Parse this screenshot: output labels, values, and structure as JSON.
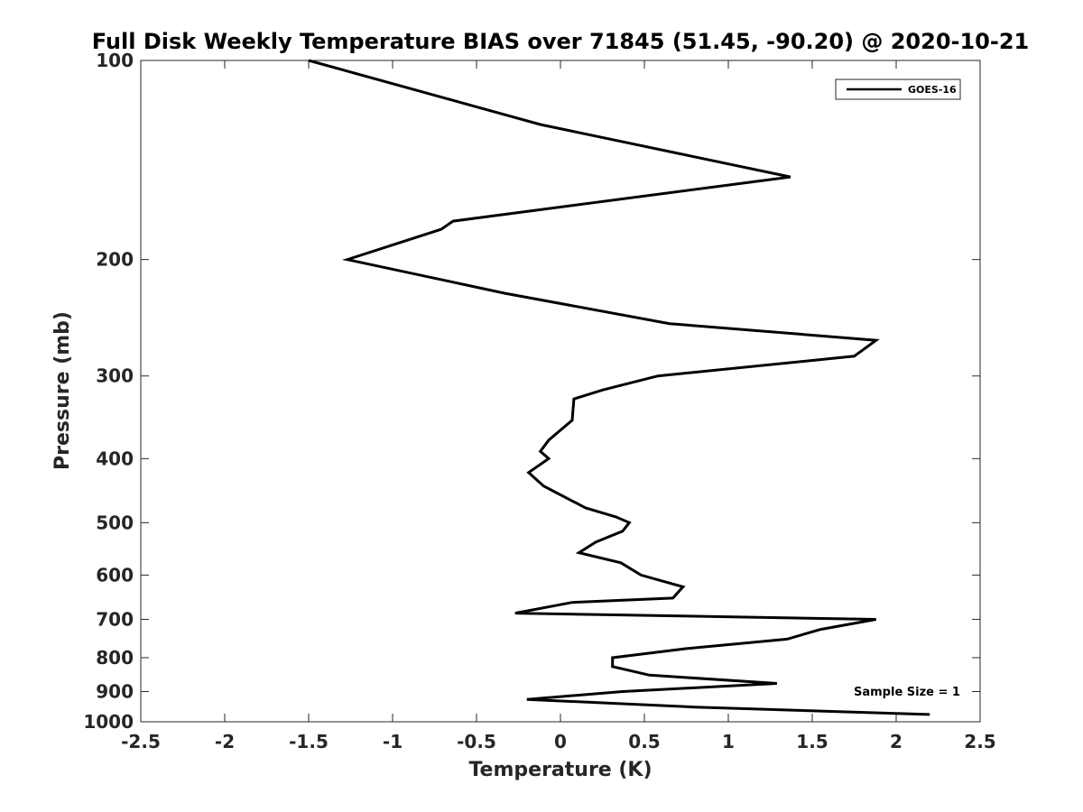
{
  "chart_data": {
    "type": "line",
    "title": "Full Disk Weekly Temperature BIAS over 71845 (51.45, -90.20) @ 2020-10-21",
    "xlabel": "Temperature (K)",
    "ylabel": "Pressure (mb)",
    "xlim": [
      -2.5,
      2.5
    ],
    "ylim": [
      100,
      1000
    ],
    "yscale": "log-reversed",
    "xticks": [
      -2.5,
      -2,
      -1.5,
      -1,
      -0.5,
      0,
      0.5,
      1,
      1.5,
      2,
      2.5
    ],
    "xtick_labels": [
      "-2.5",
      "-2",
      "-1.5",
      "-1",
      "-0.5",
      "0",
      "0.5",
      "1",
      "1.5",
      "2",
      "2.5"
    ],
    "yticks": [
      100,
      200,
      300,
      400,
      500,
      600,
      700,
      800,
      900,
      1000
    ],
    "ytick_labels": [
      "100",
      "200",
      "300",
      "400",
      "500",
      "600",
      "700",
      "800",
      "900",
      "1000"
    ],
    "legend": {
      "position": "top-right",
      "entries": [
        "GOES-16"
      ]
    },
    "annotation": "Sample Size = 1",
    "series": [
      {
        "name": "GOES-16",
        "color": "#000000",
        "points": [
          {
            "x": -1.5,
            "p": 100
          },
          {
            "x": -0.12,
            "p": 125
          },
          {
            "x": 1.37,
            "p": 150
          },
          {
            "x": -0.64,
            "p": 175
          },
          {
            "x": -0.71,
            "p": 180
          },
          {
            "x": -1.27,
            "p": 200
          },
          {
            "x": -0.33,
            "p": 225
          },
          {
            "x": 0.65,
            "p": 250
          },
          {
            "x": 1.88,
            "p": 265
          },
          {
            "x": 1.75,
            "p": 280
          },
          {
            "x": 0.58,
            "p": 300
          },
          {
            "x": 0.25,
            "p": 315
          },
          {
            "x": 0.08,
            "p": 325
          },
          {
            "x": 0.07,
            "p": 350
          },
          {
            "x": -0.07,
            "p": 375
          },
          {
            "x": -0.12,
            "p": 390
          },
          {
            "x": -0.07,
            "p": 400
          },
          {
            "x": -0.19,
            "p": 420
          },
          {
            "x": -0.1,
            "p": 440
          },
          {
            "x": 0.15,
            "p": 475
          },
          {
            "x": 0.33,
            "p": 490
          },
          {
            "x": 0.41,
            "p": 500
          },
          {
            "x": 0.37,
            "p": 515
          },
          {
            "x": 0.21,
            "p": 535
          },
          {
            "x": 0.11,
            "p": 555
          },
          {
            "x": 0.36,
            "p": 575
          },
          {
            "x": 0.48,
            "p": 600
          },
          {
            "x": 0.73,
            "p": 625
          },
          {
            "x": 0.67,
            "p": 650
          },
          {
            "x": 0.07,
            "p": 660
          },
          {
            "x": -0.27,
            "p": 685
          },
          {
            "x": 1.88,
            "p": 700
          },
          {
            "x": 1.55,
            "p": 725
          },
          {
            "x": 1.35,
            "p": 750
          },
          {
            "x": 0.75,
            "p": 775
          },
          {
            "x": 0.31,
            "p": 800
          },
          {
            "x": 0.31,
            "p": 825
          },
          {
            "x": 0.53,
            "p": 850
          },
          {
            "x": 1.29,
            "p": 875
          },
          {
            "x": 0.37,
            "p": 900
          },
          {
            "x": -0.2,
            "p": 925
          },
          {
            "x": 0.8,
            "p": 950
          },
          {
            "x": 2.2,
            "p": 975
          }
        ]
      }
    ]
  }
}
